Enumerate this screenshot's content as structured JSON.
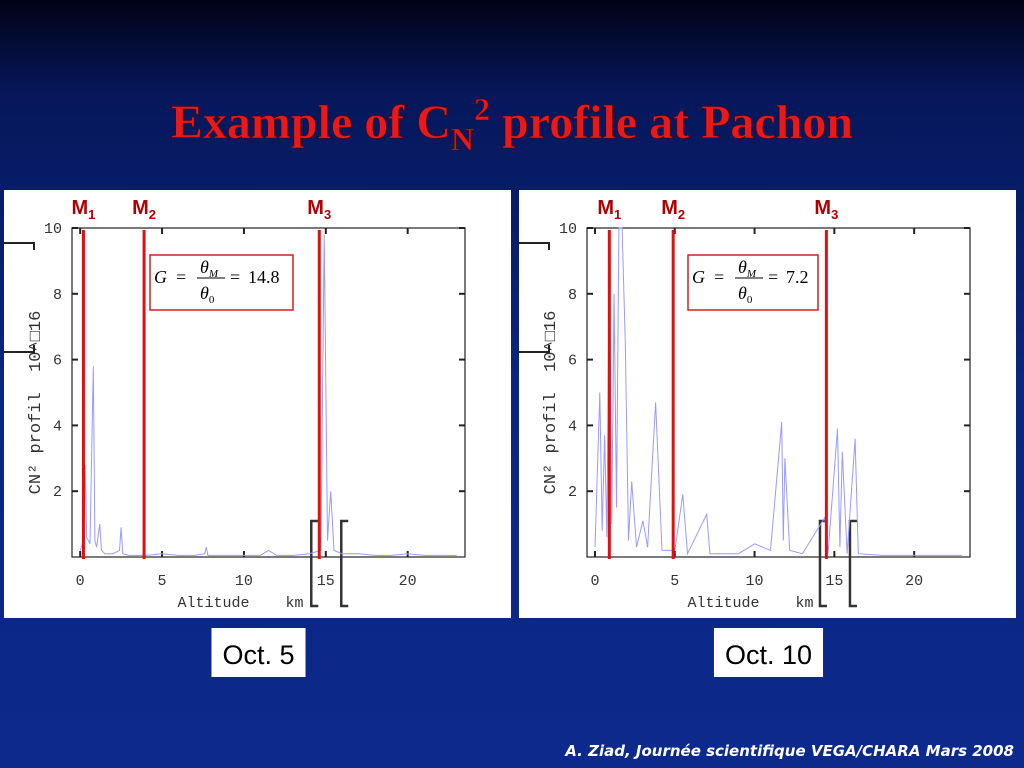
{
  "title": {
    "main": "Example of C",
    "sub": "N",
    "sup": "2",
    "rest": " profile at Pachon"
  },
  "footer": "A. Ziad, Journée scientifique VEGA/CHARA Mars 2008",
  "chart_data": [
    {
      "type": "line",
      "label": "Oct. 5",
      "x_label": "Altitude    km",
      "y_label": "CN² profil  10^□16",
      "xlim": [
        -0.5,
        23.5
      ],
      "ylim": [
        0,
        10
      ],
      "xticks": [
        0,
        5,
        10,
        15,
        20
      ],
      "yticks": [
        2,
        4,
        6,
        8,
        10
      ],
      "markers": [
        {
          "name": "M",
          "sub": "1",
          "x": 0.2
        },
        {
          "name": "M",
          "sub": "2",
          "x": 3.9
        },
        {
          "name": "M",
          "sub": "3",
          "x": 14.6
        }
      ],
      "marker_color": "#e01010",
      "formula": {
        "lhs": "G",
        "eq": "=",
        "num": "θ",
        "num_sub": "M",
        "den": "θ",
        "den_sub": "0",
        "value": 14.8
      },
      "series": [
        {
          "color": "#9a9aff",
          "x": [
            0,
            0.2,
            0.3,
            0.4,
            0.6,
            0.8,
            0.9,
            1.0,
            1.2,
            1.3,
            1.5,
            2.0,
            2.4,
            2.5,
            2.6,
            3,
            4,
            5,
            6,
            7,
            7.6,
            7.7,
            7.8,
            9,
            11,
            11.5,
            12,
            13,
            14,
            14.7,
            14.9,
            15.1,
            15.3,
            15.5,
            16,
            17,
            18,
            19,
            20,
            21,
            22,
            23
          ],
          "values": [
            0.2,
            0.5,
            2.8,
            0.6,
            0.4,
            5.8,
            0.5,
            0.3,
            1.0,
            0.2,
            0.1,
            0.1,
            0.2,
            0.9,
            0.1,
            0.05,
            0.05,
            0.1,
            0.05,
            0.05,
            0.1,
            0.3,
            0.05,
            0.05,
            0.05,
            0.2,
            0.05,
            0.05,
            0.1,
            0.2,
            9.8,
            0.5,
            2.0,
            0.2,
            0.1,
            0.1,
            0.05,
            0.05,
            0.1,
            0.05,
            0.05,
            0.05
          ]
        }
      ]
    },
    {
      "type": "line",
      "label": "Oct. 10",
      "x_label": "Altitude    km",
      "y_label": "CN² profil  10^□16",
      "xlim": [
        -0.5,
        23.5
      ],
      "ylim": [
        0,
        10
      ],
      "xticks": [
        0,
        5,
        10,
        15,
        20
      ],
      "yticks": [
        2,
        4,
        6,
        8,
        10
      ],
      "markers": [
        {
          "name": "M",
          "sub": "1",
          "x": 0.9
        },
        {
          "name": "M",
          "sub": "2",
          "x": 4.9
        },
        {
          "name": "M",
          "sub": "3",
          "x": 14.5
        }
      ],
      "marker_color": "#e01010",
      "formula": {
        "lhs": "G",
        "eq": "=",
        "num": "θ",
        "num_sub": "M",
        "den": "θ",
        "den_sub": "0",
        "value": 7.2
      },
      "series": [
        {
          "color": "#9a9aff",
          "x": [
            0,
            0.3,
            0.45,
            0.6,
            0.75,
            0.9,
            1.05,
            1.2,
            1.35,
            1.5,
            1.7,
            1.9,
            2.1,
            2.3,
            2.6,
            3.0,
            3.3,
            3.8,
            4.2,
            5,
            5.5,
            5.8,
            7,
            7.2,
            9,
            10,
            11,
            11.7,
            11.8,
            11.9,
            12.2,
            13,
            14.4,
            14.6,
            15.2,
            15.35,
            15.5,
            15.8,
            16.3,
            16.5,
            18,
            20,
            23
          ],
          "values": [
            0.3,
            5.0,
            0.8,
            3.7,
            0.6,
            9.5,
            1.0,
            8.0,
            1.5,
            10,
            10,
            6.5,
            0.5,
            2.3,
            0.3,
            1.1,
            0.3,
            4.7,
            0.2,
            0.2,
            1.9,
            0.1,
            1.3,
            0.1,
            0.1,
            0.4,
            0.2,
            4.1,
            0.5,
            3.0,
            0.2,
            0.1,
            1.2,
            0.1,
            3.9,
            0.3,
            3.2,
            0.1,
            3.6,
            0.1,
            0.05,
            0.05,
            0.05
          ]
        }
      ]
    }
  ]
}
